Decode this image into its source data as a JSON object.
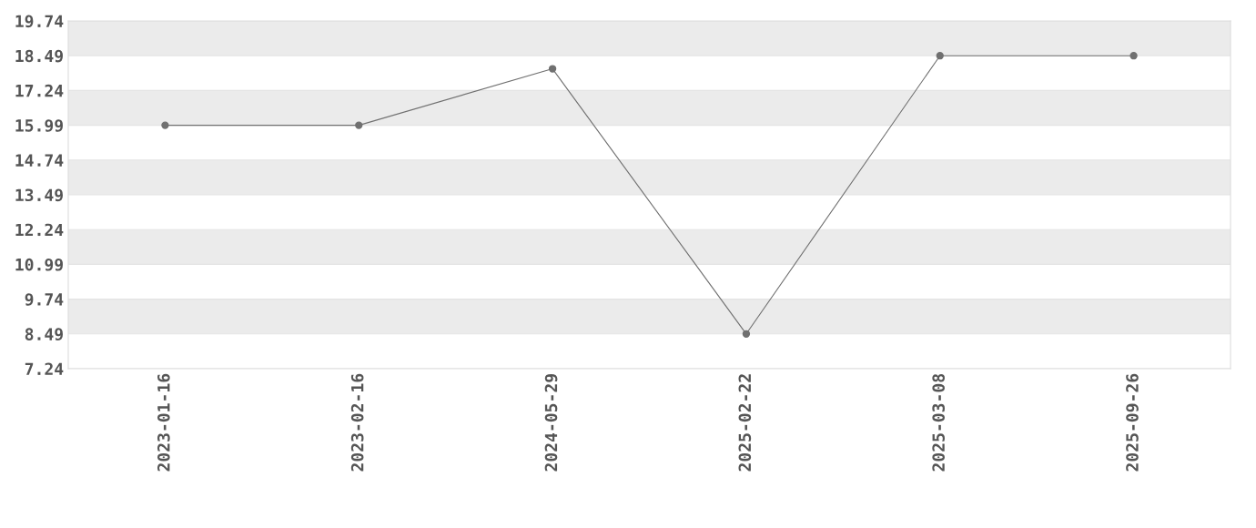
{
  "chart_data": {
    "type": "line",
    "categories": [
      "2023-01-16",
      "2023-02-16",
      "2024-05-29",
      "2025-02-22",
      "2025-03-08",
      "2025-09-26"
    ],
    "series": [
      {
        "color": "#707070",
        "values": [
          15.99,
          15.99,
          18.02,
          8.49,
          18.49,
          18.49
        ]
      }
    ],
    "ylim": [
      7.24,
      19.74
    ],
    "yticks": [
      7.24,
      8.49,
      9.74,
      10.99,
      12.24,
      13.49,
      14.74,
      15.99,
      17.24,
      18.49,
      19.74
    ],
    "grid": "y",
    "marker": "circle",
    "line_style": "solid",
    "legend": false
  }
}
